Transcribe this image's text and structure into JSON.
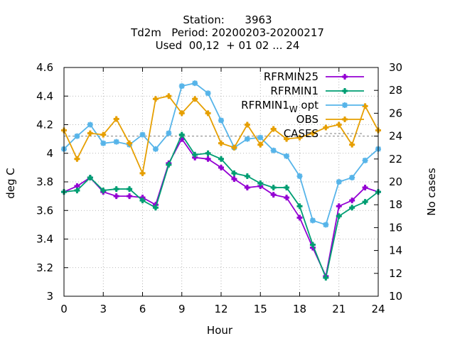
{
  "chart_data": {
    "type": "line",
    "title_lines": [
      "Station:      3963",
      "Td2m   Period: 20200203-20200217",
      "Used  00,12  + 01 02 ... 24"
    ],
    "xlabel": "Hour",
    "ylabel": "deg C",
    "y2label": "No cases",
    "xlim": [
      0,
      24
    ],
    "ylim": [
      3.0,
      4.6
    ],
    "y2lim": [
      10,
      30
    ],
    "x_ticks": [
      0,
      3,
      6,
      9,
      12,
      15,
      18,
      21,
      24
    ],
    "y_ticks": [
      3.0,
      3.2,
      3.4,
      3.6,
      3.8,
      4.0,
      4.2,
      4.4,
      4.6
    ],
    "y_tick_labels": [
      "3",
      "3.2",
      "3.4",
      "3.6",
      "3.8",
      "4",
      "4.2",
      "4.4",
      "4.6"
    ],
    "y2_ticks": [
      10,
      12,
      14,
      16,
      18,
      20,
      22,
      24,
      26,
      28,
      30
    ],
    "x": [
      0,
      1,
      2,
      3,
      4,
      5,
      6,
      7,
      8,
      9,
      10,
      11,
      12,
      13,
      14,
      15,
      16,
      17,
      18,
      19,
      20,
      21,
      22,
      23,
      24
    ],
    "series": [
      {
        "name": "RFRMIN25",
        "color": "#9400d3",
        "marker": "plus",
        "values": [
          3.73,
          3.77,
          3.83,
          3.73,
          3.7,
          3.7,
          3.69,
          3.64,
          3.93,
          4.1,
          3.97,
          3.96,
          3.9,
          3.82,
          3.76,
          3.77,
          3.71,
          3.69,
          3.55,
          3.34,
          3.14,
          3.63,
          3.67,
          3.76,
          3.73
        ]
      },
      {
        "name": "RFRMIN1",
        "color": "#009e73",
        "marker": "plus",
        "values": [
          3.73,
          3.74,
          3.83,
          3.74,
          3.75,
          3.75,
          3.67,
          3.62,
          3.92,
          4.13,
          3.99,
          4.0,
          3.96,
          3.86,
          3.84,
          3.79,
          3.76,
          3.76,
          3.63,
          3.36,
          3.13,
          3.56,
          3.62,
          3.66,
          3.73
        ]
      },
      {
        "name_main": "RFRMIN1",
        "name_sub": "W",
        "name_tail": " opt",
        "color": "#56b4e9",
        "marker": "star",
        "values": [
          4.03,
          4.12,
          4.2,
          4.07,
          4.08,
          4.06,
          4.13,
          4.03,
          4.14,
          4.47,
          4.49,
          4.42,
          4.23,
          4.04,
          4.1,
          4.11,
          4.02,
          3.98,
          3.84,
          3.53,
          3.5,
          3.8,
          3.83,
          3.95,
          4.03
        ]
      },
      {
        "name": "OBS",
        "color": "#e69f00",
        "marker": "plus",
        "values": [
          4.16,
          3.96,
          4.14,
          4.13,
          4.24,
          4.07,
          3.86,
          4.38,
          4.4,
          4.28,
          4.38,
          4.28,
          4.07,
          4.04,
          4.2,
          4.06,
          4.17,
          4.1,
          4.11,
          4.14,
          4.18,
          4.2,
          4.06,
          4.33,
          4.16
        ]
      }
    ],
    "cases": {
      "name": "CASES",
      "color": "#808080",
      "value": 24
    }
  }
}
